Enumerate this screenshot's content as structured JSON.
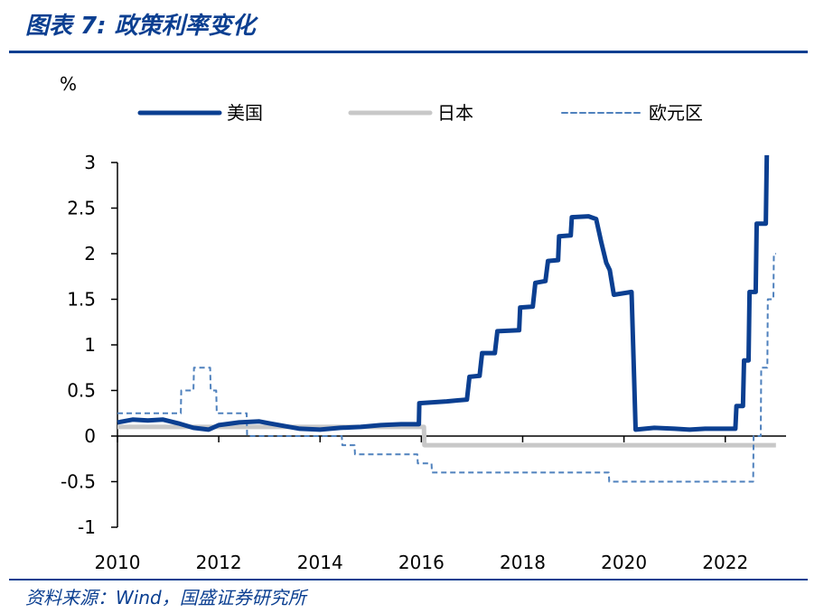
{
  "header": {
    "title": "图表 7:  政策利率变化",
    "source": "资料来源：Wind，国盛证券研究所"
  },
  "colors": {
    "accent": "#0b3f91",
    "us": "#0b3f91",
    "japan": "#c8c8c8",
    "euro": "#4f81bd"
  },
  "chart_data": {
    "type": "line",
    "ylabel": "%",
    "ylim": [
      -1,
      3
    ],
    "xlim": [
      2010,
      2023.2
    ],
    "yticks": [
      "3",
      "2.5",
      "2",
      "1.5",
      "1",
      "0.5",
      "0",
      "-0.5",
      "-1"
    ],
    "ytick_values": [
      3,
      2.5,
      2,
      1.5,
      1,
      0.5,
      0,
      -0.5,
      -1
    ],
    "xticks": [
      "2010",
      "2012",
      "2014",
      "2016",
      "2018",
      "2020",
      "2022"
    ],
    "xtick_values": [
      2010,
      2012,
      2014,
      2016,
      2018,
      2020,
      2022
    ],
    "legend_position": "top",
    "series": [
      {
        "name": "美国",
        "style": "solid-thick",
        "points": [
          [
            2010.0,
            0.15
          ],
          [
            2010.3,
            0.18
          ],
          [
            2010.6,
            0.17
          ],
          [
            2010.9,
            0.18
          ],
          [
            2011.2,
            0.14
          ],
          [
            2011.5,
            0.09
          ],
          [
            2011.8,
            0.07
          ],
          [
            2012.0,
            0.12
          ],
          [
            2012.4,
            0.15
          ],
          [
            2012.8,
            0.16
          ],
          [
            2013.0,
            0.14
          ],
          [
            2013.3,
            0.11
          ],
          [
            2013.6,
            0.08
          ],
          [
            2014.0,
            0.07
          ],
          [
            2014.4,
            0.09
          ],
          [
            2014.8,
            0.1
          ],
          [
            2015.2,
            0.12
          ],
          [
            2015.6,
            0.13
          ],
          [
            2015.95,
            0.13
          ],
          [
            2015.96,
            0.36
          ],
          [
            2016.5,
            0.38
          ],
          [
            2016.9,
            0.4
          ],
          [
            2016.95,
            0.65
          ],
          [
            2017.15,
            0.66
          ],
          [
            2017.2,
            0.91
          ],
          [
            2017.45,
            0.91
          ],
          [
            2017.5,
            1.15
          ],
          [
            2017.93,
            1.16
          ],
          [
            2017.95,
            1.41
          ],
          [
            2018.2,
            1.42
          ],
          [
            2018.25,
            1.68
          ],
          [
            2018.45,
            1.7
          ],
          [
            2018.5,
            1.92
          ],
          [
            2018.7,
            1.93
          ],
          [
            2018.72,
            2.19
          ],
          [
            2018.95,
            2.2
          ],
          [
            2018.97,
            2.4
          ],
          [
            2019.3,
            2.41
          ],
          [
            2019.45,
            2.38
          ],
          [
            2019.55,
            2.13
          ],
          [
            2019.65,
            1.9
          ],
          [
            2019.72,
            1.82
          ],
          [
            2019.8,
            1.55
          ],
          [
            2020.15,
            1.58
          ],
          [
            2020.2,
            0.65
          ],
          [
            2020.23,
            0.07
          ],
          [
            2020.6,
            0.09
          ],
          [
            2021.0,
            0.08
          ],
          [
            2021.3,
            0.07
          ],
          [
            2021.6,
            0.08
          ],
          [
            2022.0,
            0.08
          ],
          [
            2022.2,
            0.08
          ],
          [
            2022.22,
            0.33
          ],
          [
            2022.35,
            0.33
          ],
          [
            2022.37,
            0.83
          ],
          [
            2022.46,
            0.83
          ],
          [
            2022.48,
            1.58
          ],
          [
            2022.6,
            1.58
          ],
          [
            2022.62,
            2.33
          ],
          [
            2022.8,
            2.33
          ],
          [
            2022.82,
            3.08
          ]
        ]
      },
      {
        "name": "日本",
        "style": "solid-grey",
        "points": [
          [
            2010.0,
            0.1
          ],
          [
            2016.05,
            0.1
          ],
          [
            2016.06,
            -0.1
          ],
          [
            2023.0,
            -0.1
          ]
        ]
      },
      {
        "name": "欧元区",
        "style": "dashed",
        "points": [
          [
            2010.0,
            0.25
          ],
          [
            2011.25,
            0.25
          ],
          [
            2011.26,
            0.5
          ],
          [
            2011.5,
            0.5
          ],
          [
            2011.51,
            0.75
          ],
          [
            2011.83,
            0.75
          ],
          [
            2011.84,
            0.5
          ],
          [
            2011.95,
            0.5
          ],
          [
            2011.96,
            0.25
          ],
          [
            2012.55,
            0.25
          ],
          [
            2012.56,
            0.0
          ],
          [
            2014.43,
            0.0
          ],
          [
            2014.44,
            -0.1
          ],
          [
            2014.68,
            -0.1
          ],
          [
            2014.69,
            -0.2
          ],
          [
            2015.92,
            -0.2
          ],
          [
            2015.93,
            -0.3
          ],
          [
            2016.2,
            -0.3
          ],
          [
            2016.21,
            -0.4
          ],
          [
            2019.7,
            -0.4
          ],
          [
            2019.71,
            -0.5
          ],
          [
            2022.55,
            -0.5
          ],
          [
            2022.56,
            0.0
          ],
          [
            2022.7,
            0.0
          ],
          [
            2022.71,
            0.75
          ],
          [
            2022.83,
            0.75
          ],
          [
            2022.84,
            1.5
          ],
          [
            2022.95,
            1.5
          ],
          [
            2022.96,
            2.0
          ],
          [
            2023.0,
            2.0
          ]
        ]
      }
    ]
  }
}
